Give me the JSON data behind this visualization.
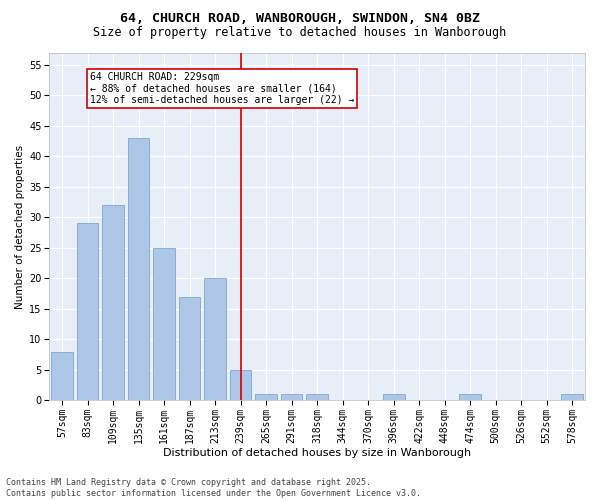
{
  "title1": "64, CHURCH ROAD, WANBOROUGH, SWINDON, SN4 0BZ",
  "title2": "Size of property relative to detached houses in Wanborough",
  "xlabel": "Distribution of detached houses by size in Wanborough",
  "ylabel": "Number of detached properties",
  "categories": [
    "57sqm",
    "83sqm",
    "109sqm",
    "135sqm",
    "161sqm",
    "187sqm",
    "213sqm",
    "239sqm",
    "265sqm",
    "291sqm",
    "318sqm",
    "344sqm",
    "370sqm",
    "396sqm",
    "422sqm",
    "448sqm",
    "474sqm",
    "500sqm",
    "526sqm",
    "552sqm",
    "578sqm"
  ],
  "values": [
    8,
    29,
    32,
    43,
    25,
    17,
    20,
    5,
    1,
    1,
    1,
    0,
    0,
    1,
    0,
    0,
    1,
    0,
    0,
    0,
    1
  ],
  "bar_color": "#aec6e8",
  "bar_edge_color": "#6a9fc8",
  "vline_color": "#cc0000",
  "annotation_text": "64 CHURCH ROAD: 229sqm\n← 88% of detached houses are smaller (164)\n12% of semi-detached houses are larger (22) →",
  "annotation_box_color": "#ffffff",
  "annotation_box_edge_color": "#cc0000",
  "ylim": [
    0,
    57
  ],
  "yticks": [
    0,
    5,
    10,
    15,
    20,
    25,
    30,
    35,
    40,
    45,
    50,
    55
  ],
  "bg_color": "#e8eef8",
  "grid_color": "#ffffff",
  "footer": "Contains HM Land Registry data © Crown copyright and database right 2025.\nContains public sector information licensed under the Open Government Licence v3.0.",
  "title1_fontsize": 9.5,
  "title2_fontsize": 8.5,
  "xlabel_fontsize": 8,
  "ylabel_fontsize": 7.5,
  "tick_fontsize": 7,
  "annotation_fontsize": 7,
  "footer_fontsize": 6
}
